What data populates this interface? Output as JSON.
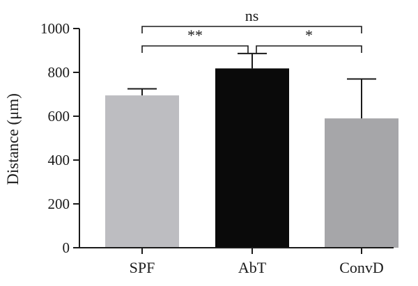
{
  "chart_data": {
    "type": "bar",
    "title": "",
    "xlabel": "",
    "ylabel": "Distance (μm)",
    "ylim": [
      0,
      1000
    ],
    "yticks": [
      0,
      200,
      400,
      600,
      800,
      1000
    ],
    "categories": [
      "SPF",
      "AbT",
      "ConvD"
    ],
    "values": [
      695,
      818,
      590
    ],
    "errors": [
      30,
      68,
      180
    ],
    "colors": [
      "#bdbdc1",
      "#0a0a0a",
      "#a6a6a9"
    ],
    "annotations": [
      {
        "from": "SPF",
        "to": "AbT",
        "label": "**"
      },
      {
        "from": "AbT",
        "to": "ConvD",
        "label": "*"
      },
      {
        "from": "SPF",
        "to": "ConvD",
        "label": "ns"
      }
    ]
  }
}
